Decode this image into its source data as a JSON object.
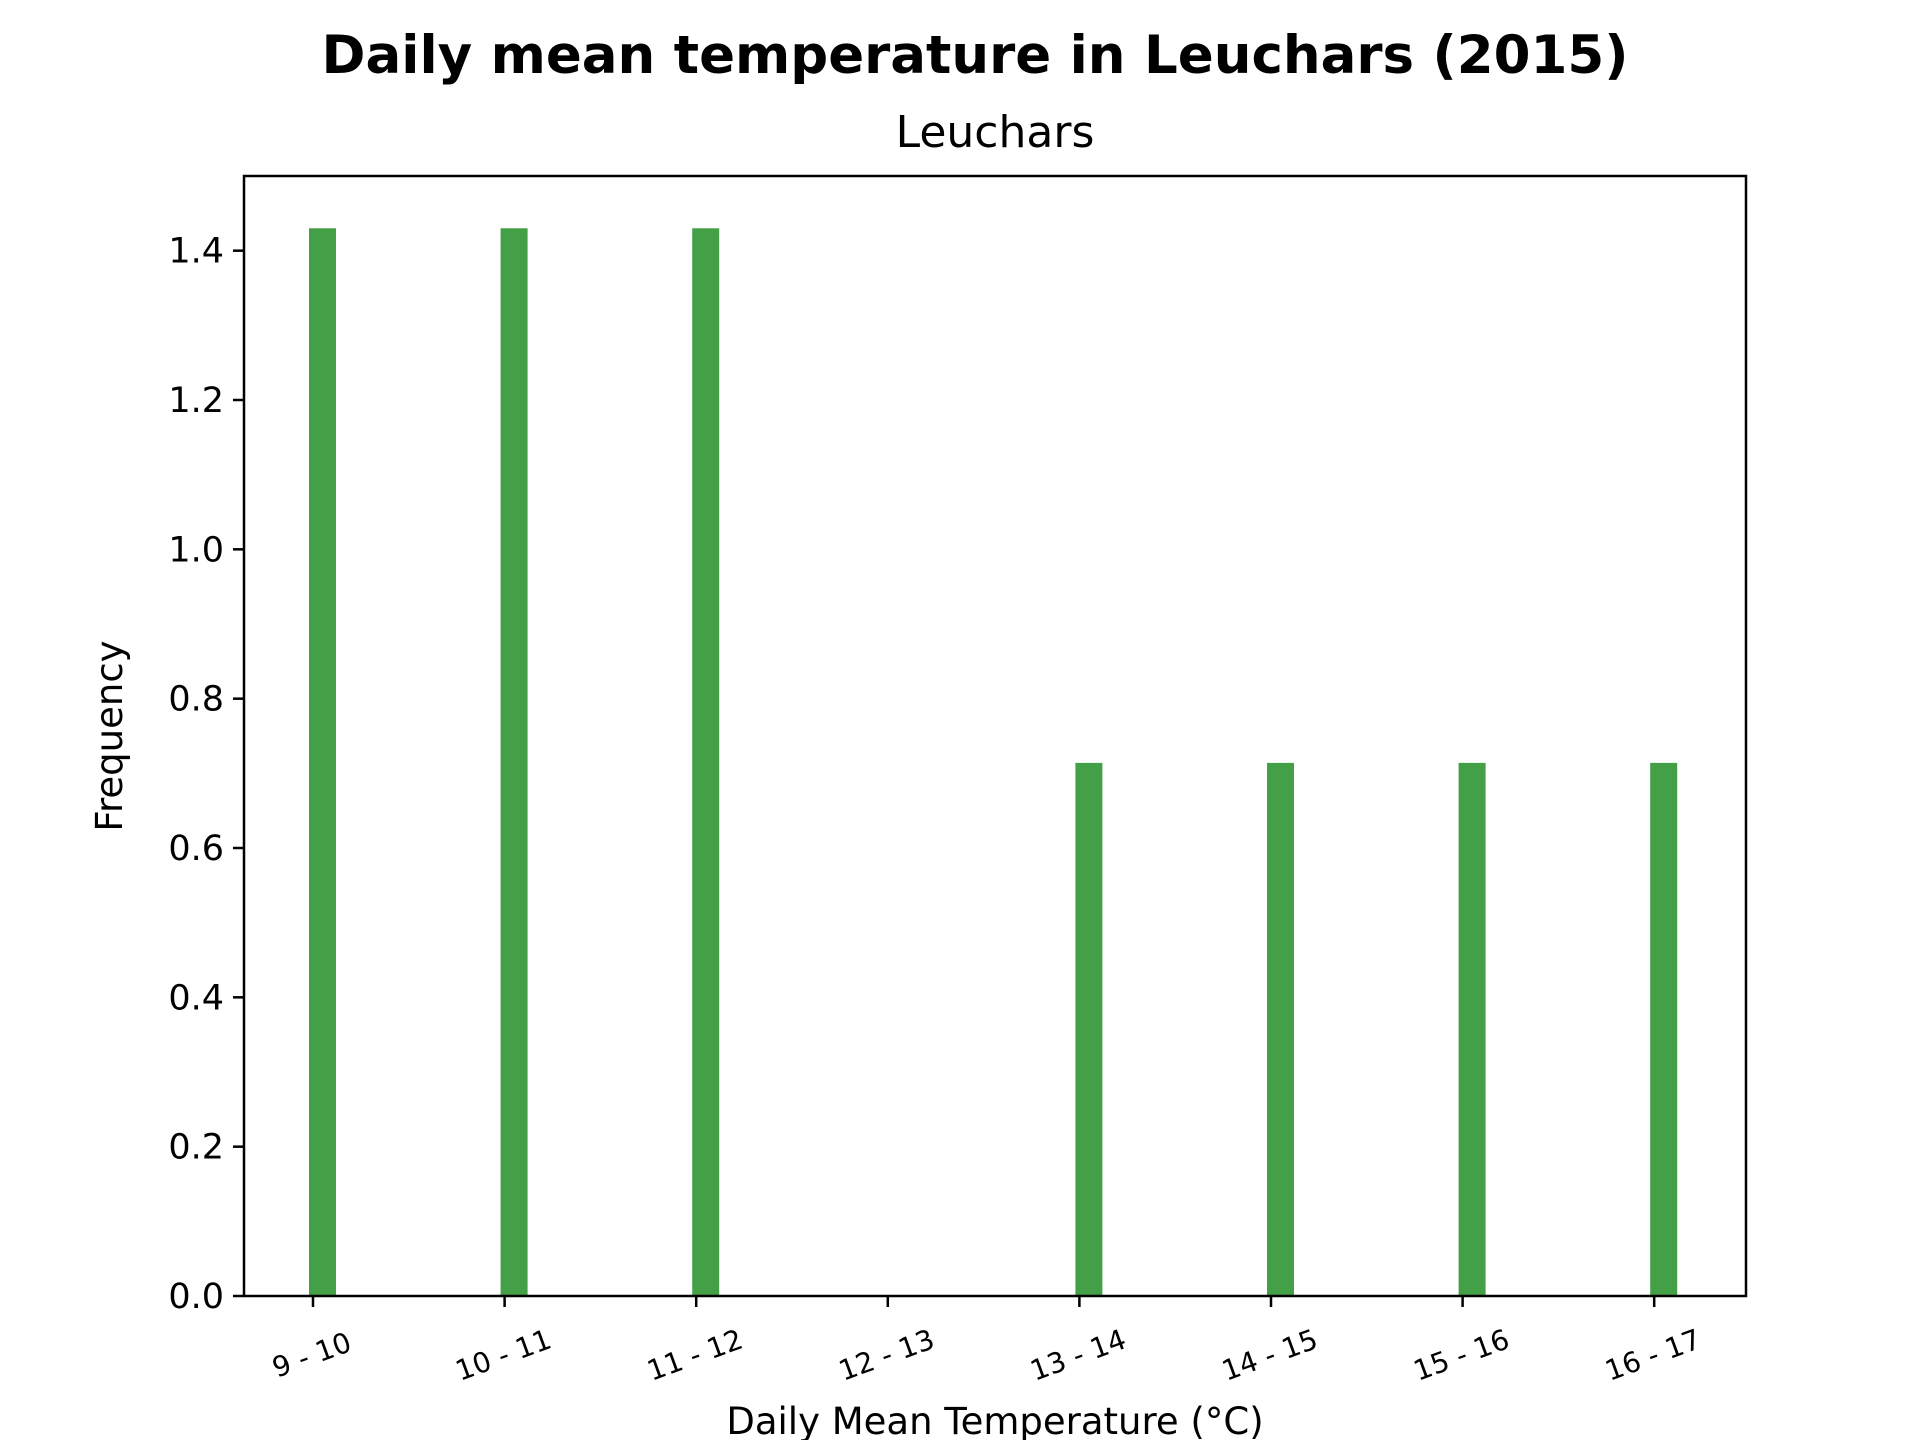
{
  "chart_data": {
    "type": "bar",
    "title": "Daily mean temperature in Leuchars (2015)",
    "subtitle": "Leuchars",
    "xlabel": "Daily Mean Temperature (°C)",
    "ylabel": "Frequency",
    "categories": [
      "9 - 10",
      "10 - 11",
      "11 - 12",
      "12 - 13",
      "13 - 14",
      "14 - 15",
      "15 - 16",
      "16 - 17"
    ],
    "values": [
      1.43,
      1.43,
      1.43,
      0,
      0.714,
      0.714,
      0.714,
      0.714
    ],
    "yticks": [
      "0.0",
      "0.2",
      "0.4",
      "0.6",
      "0.8",
      "1.0",
      "1.2",
      "1.4"
    ],
    "ylim": [
      0,
      1.5
    ],
    "grid": false,
    "legend": "none",
    "bar_color": "#43a047",
    "axes_color": "#000000"
  }
}
